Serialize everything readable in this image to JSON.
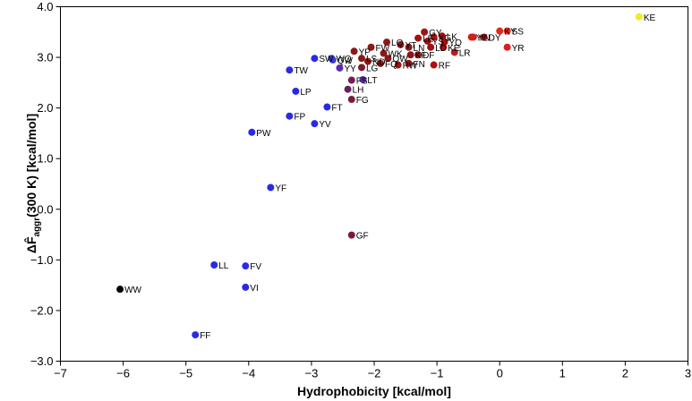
{
  "chart_data": {
    "type": "scatter",
    "title": "",
    "xlabel": "Hydrophobicity [kcal/mol]",
    "ylabel": {
      "prefix": "Δ",
      "symbol": "F̂",
      "subscript": "aggr",
      "suffix": "(300 K) [kcal/mol]"
    },
    "xlim": [
      -7,
      3
    ],
    "ylim": [
      -3,
      4
    ],
    "xticks": [
      -7,
      -6,
      -5,
      -4,
      -3,
      -2,
      -1,
      0,
      1,
      2,
      3
    ],
    "xtick_labels": [
      "−7",
      "−6",
      "−5",
      "−4",
      "−3",
      "−2",
      "−1",
      "0",
      "1",
      "2",
      "3"
    ],
    "yticks": [
      4,
      3,
      2,
      1,
      0,
      -1,
      -2,
      -3
    ],
    "ytick_labels": [
      "4.0",
      "3.0",
      "2.0",
      "1.0",
      "0.0",
      "−1.0",
      "−2.0",
      "−3.0"
    ],
    "grid": false,
    "points": [
      {
        "label": "KE",
        "x": 2.22,
        "y": 3.8,
        "color": "#f0ec1e"
      },
      {
        "label": "WW",
        "x": -6.05,
        "y": -1.58,
        "color": "#000000"
      },
      {
        "label": "FF",
        "x": -4.85,
        "y": -2.48,
        "color": "#2a2ae6"
      },
      {
        "label": "LL",
        "x": -4.55,
        "y": -1.1,
        "color": "#2a2ae6"
      },
      {
        "label": "FV",
        "x": -4.05,
        "y": -1.12,
        "color": "#2a2ae6"
      },
      {
        "label": "VI",
        "x": -4.05,
        "y": -1.54,
        "color": "#2a2ae6"
      },
      {
        "label": "YF",
        "x": -3.65,
        "y": 0.43,
        "color": "#2a2ae6"
      },
      {
        "label": "PW",
        "x": -3.95,
        "y": 1.52,
        "color": "#2a2ae6"
      },
      {
        "label": "FP",
        "x": -3.35,
        "y": 1.84,
        "color": "#2a2ae6"
      },
      {
        "label": "LP",
        "x": -3.25,
        "y": 2.33,
        "color": "#2a2ae6"
      },
      {
        "label": "TW",
        "x": -3.35,
        "y": 2.75,
        "color": "#2a2ae6"
      },
      {
        "label": "FT",
        "x": -2.75,
        "y": 2.02,
        "color": "#2a2ae6"
      },
      {
        "label": "YV",
        "x": -2.95,
        "y": 1.69,
        "color": "#2a2ae6"
      },
      {
        "label": "SW",
        "x": -2.95,
        "y": 2.98,
        "color": "#2a2ae6"
      },
      {
        "label": "WQ",
        "x": -2.68,
        "y": 2.98,
        "color": "#3b3ad8"
      },
      {
        "label": "QW",
        "x": -2.66,
        "y": 2.95,
        "color": "#3b3ad8"
      },
      {
        "label": "YY",
        "x": -2.55,
        "y": 2.79,
        "color": "#5a2ab0"
      },
      {
        "label": "LT",
        "x": -2.18,
        "y": 2.56,
        "color": "#5a2ab0"
      },
      {
        "label": "LH",
        "x": -2.42,
        "y": 2.37,
        "color": "#6a2060"
      },
      {
        "label": "FS",
        "x": -2.36,
        "y": 2.55,
        "color": "#7a1a50"
      },
      {
        "label": "FG",
        "x": -2.36,
        "y": 2.17,
        "color": "#7a1a40"
      },
      {
        "label": "LG",
        "x": -2.2,
        "y": 2.8,
        "color": "#7a1a30"
      },
      {
        "label": "GF",
        "x": -2.36,
        "y": -0.51,
        "color": "#7a1a40"
      },
      {
        "label": "YP",
        "x": -2.32,
        "y": 3.12,
        "color": "#8a1818"
      },
      {
        "label": "FW",
        "x": -2.05,
        "y": 3.2,
        "color": "#8a1818"
      },
      {
        "label": "LS",
        "x": -2.2,
        "y": 2.98,
        "color": "#8a1818"
      },
      {
        "label": "ND",
        "x": -2.1,
        "y": 2.92,
        "color": "#8a1818"
      },
      {
        "label": "LQ",
        "x": -1.8,
        "y": 3.3,
        "color": "#8a1818"
      },
      {
        "label": "WK",
        "x": -1.85,
        "y": 3.08,
        "color": "#8a1818"
      },
      {
        "label": "QW",
        "x": -1.78,
        "y": 2.98,
        "color": "#8a1818"
      },
      {
        "label": "FQ",
        "x": -1.9,
        "y": 2.88,
        "color": "#8a1818"
      },
      {
        "label": "YT",
        "x": -1.58,
        "y": 3.25,
        "color": "#8a1818"
      },
      {
        "label": "LN",
        "x": -1.45,
        "y": 3.2,
        "color": "#8a1818"
      },
      {
        "label": "KF",
        "x": -1.42,
        "y": 3.05,
        "color": "#8a1818"
      },
      {
        "label": "RW",
        "x": -1.62,
        "y": 2.85,
        "color": "#9a1414"
      },
      {
        "label": "FN",
        "x": -1.45,
        "y": 2.88,
        "color": "#9a1414"
      },
      {
        "label": "DF",
        "x": -1.3,
        "y": 3.05,
        "color": "#9a1414"
      },
      {
        "label": "LE",
        "x": -1.3,
        "y": 3.38,
        "color": "#a01212"
      },
      {
        "label": "GY",
        "x": -1.2,
        "y": 3.5,
        "color": "#a01212"
      },
      {
        "label": "YS",
        "x": -1.15,
        "y": 3.32,
        "color": "#a01212"
      },
      {
        "label": "LD",
        "x": -1.1,
        "y": 3.2,
        "color": "#a01212"
      },
      {
        "label": "YG",
        "x": -1.05,
        "y": 3.4,
        "color": "#a81010"
      },
      {
        "label": "LK",
        "x": -0.92,
        "y": 3.42,
        "color": "#a81010"
      },
      {
        "label": "YQ",
        "x": -0.88,
        "y": 3.3,
        "color": "#a81010"
      },
      {
        "label": "KE",
        "x": -0.9,
        "y": 3.2,
        "color": "#a81010"
      },
      {
        "label": "RF",
        "x": -1.05,
        "y": 2.85,
        "color": "#b01010"
      },
      {
        "label": "LR",
        "x": -0.72,
        "y": 3.1,
        "color": "#c01818"
      },
      {
        "label": "YE",
        "x": -0.45,
        "y": 3.4,
        "color": "#d01f1f"
      },
      {
        "label": "YN",
        "x": -0.42,
        "y": 3.4,
        "color": "#d01f1f"
      },
      {
        "label": "DY",
        "x": -0.25,
        "y": 3.4,
        "color": "#d82020"
      },
      {
        "label": "KY",
        "x": 0.0,
        "y": 3.52,
        "color": "#e02a1a"
      },
      {
        "label": "SS",
        "x": 0.12,
        "y": 3.52,
        "color": "#e02a1a"
      },
      {
        "label": "YR",
        "x": 0.12,
        "y": 3.2,
        "color": "#d82020"
      }
    ]
  }
}
